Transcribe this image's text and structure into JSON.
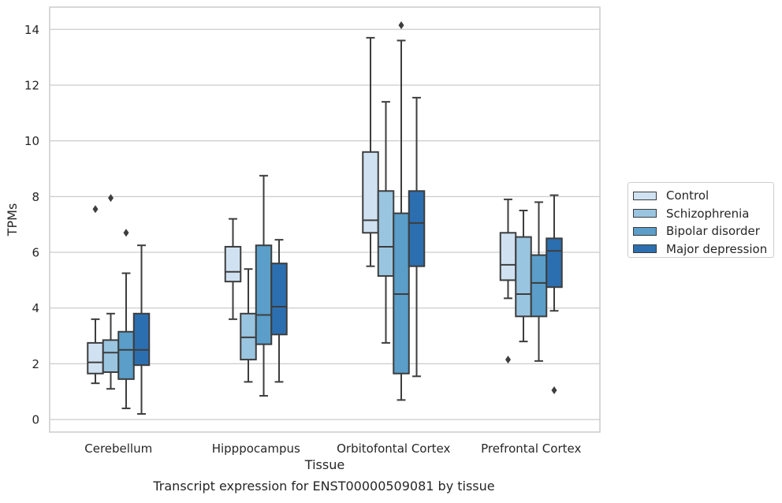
{
  "chart_data": {
    "type": "box",
    "caption": "Transcript expression for ENST00000509081 by tissue",
    "xlabel": "Tissue",
    "ylabel": "TPMs",
    "ylim": [
      -0.45,
      14.8
    ],
    "yticks": [
      0,
      2,
      4,
      6,
      8,
      10,
      12,
      14
    ],
    "categories": [
      "Cerebellum",
      "Hipppocampus",
      "Orbitofontal Cortex",
      "Prefrontal Cortex"
    ],
    "grid": true,
    "legend_position": "right",
    "series": [
      {
        "name": "Control",
        "color": "#d0e2f2",
        "boxes": [
          {
            "whisker_low": 1.3,
            "q1": 1.65,
            "median": 2.05,
            "q3": 2.75,
            "whisker_high": 3.6,
            "outliers": [
              7.55
            ]
          },
          {
            "whisker_low": 3.6,
            "q1": 4.95,
            "median": 5.3,
            "q3": 6.2,
            "whisker_high": 7.2,
            "outliers": []
          },
          {
            "whisker_low": 5.5,
            "q1": 6.7,
            "median": 7.15,
            "q3": 9.6,
            "whisker_high": 13.7,
            "outliers": []
          },
          {
            "whisker_low": 4.35,
            "q1": 5.0,
            "median": 5.55,
            "q3": 6.7,
            "whisker_high": 7.9,
            "outliers": [
              2.15
            ]
          }
        ]
      },
      {
        "name": "Schizophrenia",
        "color": "#9ac5e0",
        "boxes": [
          {
            "whisker_low": 1.1,
            "q1": 1.7,
            "median": 2.4,
            "q3": 2.85,
            "whisker_high": 3.8,
            "outliers": [
              7.95
            ]
          },
          {
            "whisker_low": 1.35,
            "q1": 2.15,
            "median": 2.95,
            "q3": 3.8,
            "whisker_high": 5.4,
            "outliers": []
          },
          {
            "whisker_low": 2.75,
            "q1": 5.15,
            "median": 6.2,
            "q3": 8.2,
            "whisker_high": 11.4,
            "outliers": []
          },
          {
            "whisker_low": 2.8,
            "q1": 3.7,
            "median": 4.5,
            "q3": 6.55,
            "whisker_high": 7.5,
            "outliers": []
          }
        ]
      },
      {
        "name": "Bipolar disorder",
        "color": "#5a9ec9",
        "boxes": [
          {
            "whisker_low": 0.4,
            "q1": 1.45,
            "median": 2.5,
            "q3": 3.15,
            "whisker_high": 5.25,
            "outliers": [
              6.7
            ]
          },
          {
            "whisker_low": 0.85,
            "q1": 2.7,
            "median": 3.75,
            "q3": 6.25,
            "whisker_high": 8.75,
            "outliers": []
          },
          {
            "whisker_low": 0.7,
            "q1": 1.65,
            "median": 4.5,
            "q3": 7.4,
            "whisker_high": 13.6,
            "outliers": [
              14.15
            ]
          },
          {
            "whisker_low": 2.1,
            "q1": 3.7,
            "median": 4.9,
            "q3": 5.9,
            "whisker_high": 7.8,
            "outliers": []
          }
        ]
      },
      {
        "name": "Major depression",
        "color": "#2c6fb0",
        "boxes": [
          {
            "whisker_low": 0.2,
            "q1": 1.95,
            "median": 2.5,
            "q3": 3.8,
            "whisker_high": 6.25,
            "outliers": []
          },
          {
            "whisker_low": 1.35,
            "q1": 3.05,
            "median": 4.05,
            "q3": 5.6,
            "whisker_high": 6.45,
            "outliers": []
          },
          {
            "whisker_low": 1.55,
            "q1": 5.5,
            "median": 7.05,
            "q3": 8.2,
            "whisker_high": 11.55,
            "outliers": []
          },
          {
            "whisker_low": 3.9,
            "q1": 4.75,
            "median": 6.05,
            "q3": 6.5,
            "whisker_high": 8.05,
            "outliers": [
              1.05
            ]
          }
        ]
      }
    ]
  }
}
